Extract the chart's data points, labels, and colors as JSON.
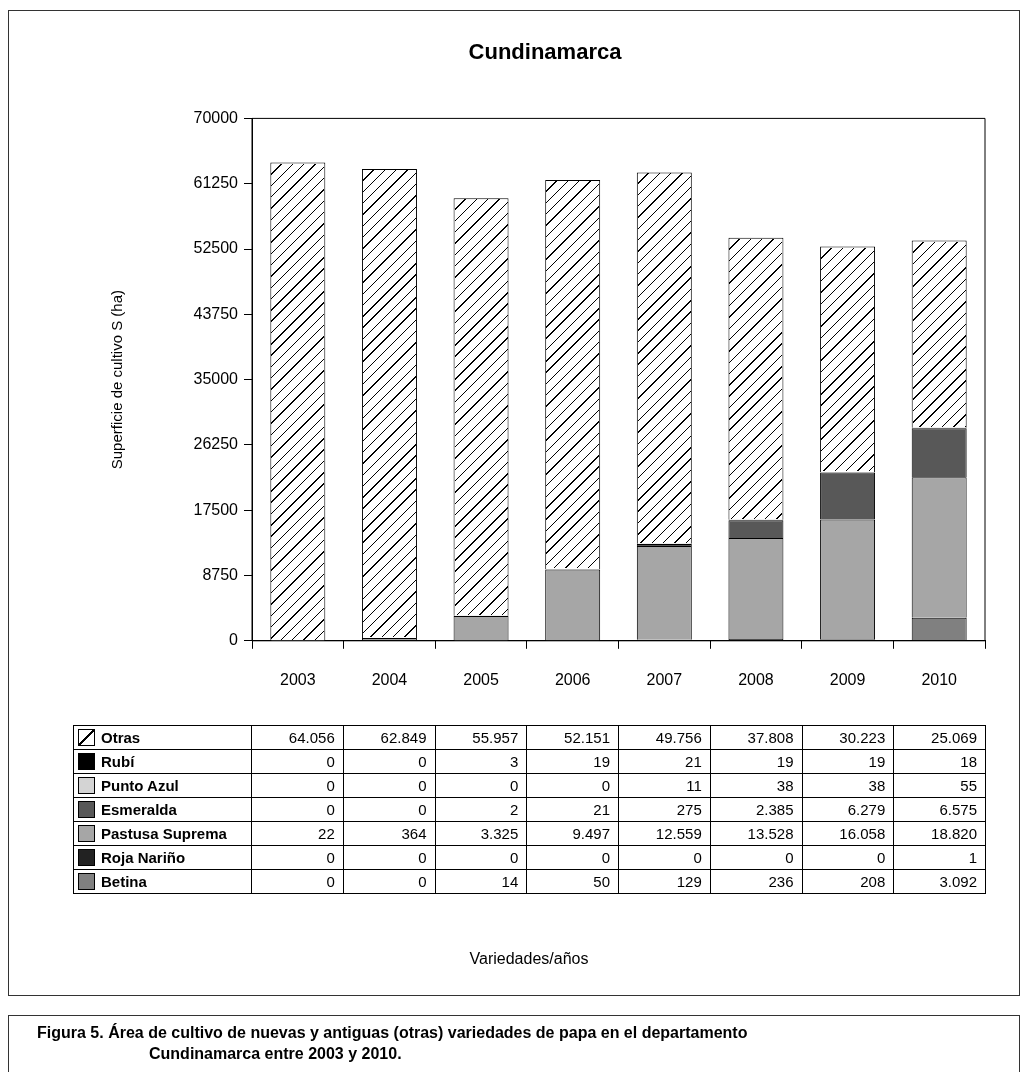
{
  "chart_data": {
    "type": "bar",
    "title": "Cundinamarca",
    "ylabel": "Superficie de cultivo S (ha)",
    "categories": [
      "2003",
      "2004",
      "2005",
      "2006",
      "2007",
      "2008",
      "2009",
      "2010"
    ],
    "stacked": true,
    "ylim": [
      0,
      70000
    ],
    "yticks": [
      0,
      8750,
      17500,
      26250,
      35000,
      43750,
      52500,
      61250,
      70000
    ],
    "grid": false,
    "legend": "bottom",
    "series": [
      {
        "name": "Betina",
        "color": "#808080",
        "values": [
          0,
          0,
          14,
          50,
          129,
          236,
          208,
          3092
        ],
        "value_labels": [
          "0",
          "0",
          "14",
          "50",
          "129",
          "236",
          "208",
          "3.092"
        ]
      },
      {
        "name": "Roja Nariño",
        "color": "#222222",
        "values": [
          0,
          0,
          0,
          0,
          0,
          0,
          0,
          1
        ],
        "value_labels": [
          "0",
          "0",
          "0",
          "0",
          "0",
          "0",
          "0",
          "1"
        ]
      },
      {
        "name": "Pastusa Suprema",
        "color": "#a6a6a6",
        "values": [
          22,
          364,
          3325,
          9497,
          12559,
          13528,
          16058,
          18820
        ],
        "value_labels": [
          "22",
          "364",
          "3.325",
          "9.497",
          "12.559",
          "13.528",
          "16.058",
          "18.820"
        ]
      },
      {
        "name": "Esmeralda",
        "color": "#585858",
        "values": [
          0,
          0,
          2,
          21,
          275,
          2385,
          6279,
          6575
        ],
        "value_labels": [
          "0",
          "0",
          "2",
          "21",
          "275",
          "2.385",
          "6.279",
          "6.575"
        ]
      },
      {
        "name": "Punto Azul",
        "color": "#d4d4d4",
        "values": [
          0,
          0,
          0,
          0,
          11,
          38,
          38,
          55
        ],
        "value_labels": [
          "0",
          "0",
          "0",
          "0",
          "11",
          "38",
          "38",
          "55"
        ]
      },
      {
        "name": "Rubí",
        "color": "#000000",
        "values": [
          0,
          0,
          3,
          19,
          21,
          19,
          19,
          18
        ],
        "value_labels": [
          "0",
          "0",
          "3",
          "19",
          "21",
          "19",
          "19",
          "18"
        ]
      },
      {
        "name": "Otras",
        "color": "#ffffff",
        "values": [
          64056,
          62849,
          55957,
          52151,
          49756,
          37808,
          30223,
          25069
        ],
        "value_labels": [
          "64.056",
          "62.849",
          "55.957",
          "52.151",
          "49.756",
          "37.808",
          "30.223",
          "25.069"
        ]
      }
    ],
    "annotations": [
      "Variedades/años",
      "Figura 5.   Área de cultivo de nuevas y antiguas (otras) variedades de papa en el departamento Cundinamarca entre 2003 y 2010."
    ]
  }
}
